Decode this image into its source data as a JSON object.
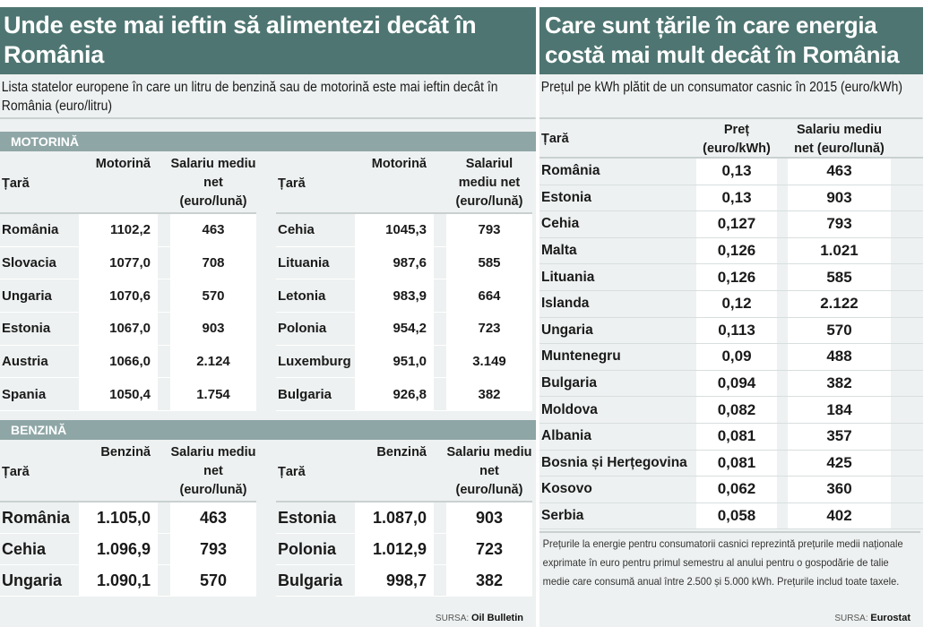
{
  "left": {
    "title": "Unde este mai ieftin să alimentezi decât în România",
    "subtitle": "Lista statelor europene în care un litru de benzină sau de motorină este mai ieftin decât în România (euro/litru)",
    "motorina": {
      "band": "MOTORINĂ",
      "tables": [
        {
          "headers": [
            "Țară",
            "Motorină",
            "Salariu mediu net (euro/lună)"
          ],
          "rows": [
            [
              "România",
              "1102,2",
              "463"
            ],
            [
              "Slovacia",
              "1077,0",
              "708"
            ],
            [
              "Ungaria",
              "1070,6",
              "570"
            ],
            [
              "Estonia",
              "1067,0",
              "903"
            ],
            [
              "Austria",
              "1066,0",
              "2.124"
            ],
            [
              "Spania",
              "1050,4",
              "1.754"
            ]
          ]
        },
        {
          "headers": [
            "Țară",
            "Motorină",
            "Salariul mediu net (euro/lună)"
          ],
          "rows": [
            [
              "Cehia",
              "1045,3",
              "793"
            ],
            [
              "Lituania",
              "987,6",
              "585"
            ],
            [
              "Letonia",
              "983,9",
              "664"
            ],
            [
              "Polonia",
              "954,2",
              "723"
            ],
            [
              "Luxemburg",
              "951,0",
              "3.149"
            ],
            [
              "Bulgaria",
              "926,8",
              "382"
            ]
          ]
        }
      ]
    },
    "benzina": {
      "band": "BENZINĂ",
      "tables": [
        {
          "headers": [
            "Țară",
            "Benzină",
            "Salariu mediu net (euro/lună)"
          ],
          "rows": [
            [
              "România",
              "1.105,0",
              "463"
            ],
            [
              "Cehia",
              "1.096,9",
              "793"
            ],
            [
              "Ungaria",
              "1.090,1",
              "570"
            ]
          ]
        },
        {
          "headers": [
            "Țară",
            "Benzină",
            "Salariu mediu net (euro/lună)"
          ],
          "rows": [
            [
              "Estonia",
              "1.087,0",
              "903"
            ],
            [
              "Polonia",
              "1.012,9",
              "723"
            ],
            [
              "Bulgaria",
              "998,7",
              "382"
            ]
          ]
        }
      ]
    },
    "source_label": "SURSA:",
    "source": "Oil Bulletin"
  },
  "right": {
    "title": "Care sunt țările în care energia costă mai mult decât în România",
    "subtitle": "Prețul pe kWh plătit de un consumator casnic în 2015 (euro/kWh)",
    "table": {
      "headers": [
        "Țară",
        "Preț (euro/kWh)",
        "Salariu mediu net (euro/lună)"
      ],
      "rows": [
        [
          "România",
          "0,13",
          "463"
        ],
        [
          "Estonia",
          "0,13",
          "903"
        ],
        [
          "Cehia",
          "0,127",
          "793"
        ],
        [
          "Malta",
          "0,126",
          "1.021"
        ],
        [
          "Lituania",
          "0,126",
          "585"
        ],
        [
          "Islanda",
          "0,12",
          "2.122"
        ],
        [
          "Ungaria",
          "0,113",
          "570"
        ],
        [
          "Muntenegru",
          "0,09",
          "488"
        ],
        [
          "Bulgaria",
          "0,094",
          "382"
        ],
        [
          "Moldova",
          "0,082",
          "184"
        ],
        [
          "Albania",
          "0,081",
          "357"
        ],
        [
          "Bosnia și Herțegovina",
          "0,081",
          "425"
        ],
        [
          "Kosovo",
          "0,062",
          "360"
        ],
        [
          "Serbia",
          "0,058",
          "402"
        ]
      ]
    },
    "note": "Prețurile la energie pentru consumatorii casnici reprezintă prețurile medii naționale exprimate în euro pentru primul semestru al anului pentru o gospodărie de talie medie care consumă anual între 2.500 și 5.000 kWh. Prețurile includ toate taxele.",
    "source_label": "SURSA:",
    "source": "Eurostat"
  }
}
